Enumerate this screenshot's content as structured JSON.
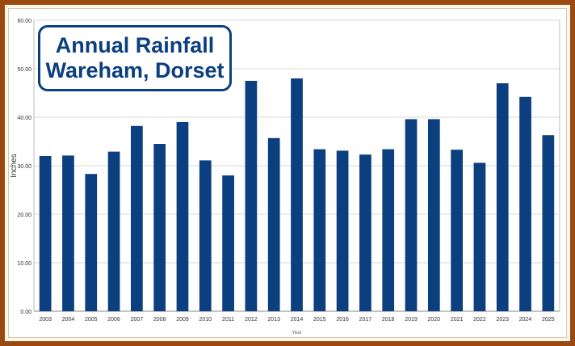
{
  "title_lines": [
    "Annual Rainfall",
    "Wareham, Dorset"
  ],
  "colors": {
    "bar": "#0b3f7f",
    "title": "#0b3f7f",
    "frame": "#9a4a10",
    "grid": "#d7d7d7",
    "axis_text": "#333333"
  },
  "chart_data": {
    "type": "bar",
    "title": "Annual Rainfall Wareham, Dorset",
    "xlabel": "Year",
    "ylabel": "Inches",
    "ylim": [
      0,
      60
    ],
    "yticks": [
      0,
      10,
      20,
      30,
      40,
      50,
      60
    ],
    "ytick_labels": [
      "0.00",
      "10.00",
      "20.00",
      "30.00",
      "40.00",
      "50.00",
      "60.00"
    ],
    "grid": true,
    "categories": [
      "2003",
      "2004",
      "2005",
      "2006",
      "2007",
      "2008",
      "2009",
      "2010",
      "2011",
      "2012",
      "2013",
      "2014",
      "2015",
      "2016",
      "2017",
      "2018",
      "2019",
      "2020",
      "2021",
      "2022",
      "2023",
      "2024",
      "2025"
    ],
    "values": [
      32.0,
      32.1,
      28.3,
      32.9,
      38.2,
      34.5,
      39.0,
      31.1,
      28.0,
      47.5,
      35.7,
      48.0,
      33.4,
      33.1,
      32.3,
      33.4,
      39.6,
      39.6,
      33.3,
      30.6,
      47.0,
      44.2,
      36.3
    ]
  }
}
